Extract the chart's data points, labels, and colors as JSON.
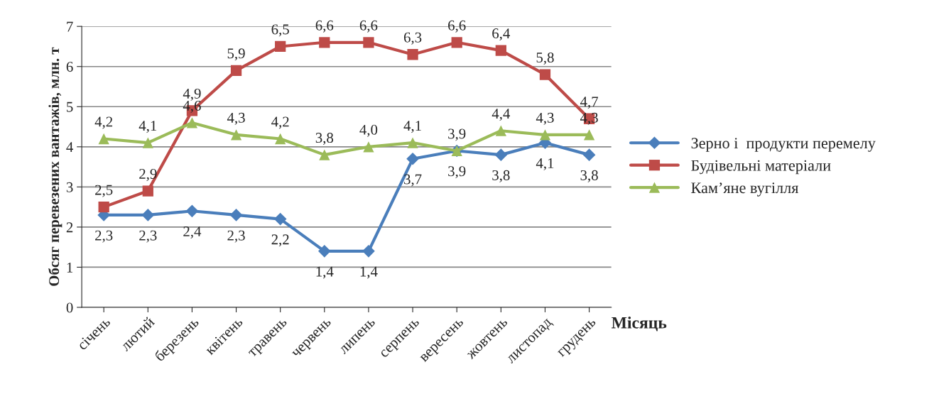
{
  "chart_data": {
    "type": "line",
    "xlabel": "Місяць",
    "ylabel": "Обсяг перевезених вантажів, млн. т",
    "categories": [
      "січень",
      "лютий",
      "березень",
      "квітень",
      "травень",
      "червень",
      "липень",
      "серпень",
      "вересень",
      "жовтень",
      "листопад",
      "грудень"
    ],
    "series": [
      {
        "name": "Зерно і  продукти перемелу",
        "color": "#4a7ebb",
        "marker": "diamond",
        "values": [
          2.3,
          2.3,
          2.4,
          2.3,
          2.2,
          1.4,
          1.4,
          3.7,
          3.9,
          3.8,
          4.1,
          3.8
        ],
        "value_labels": [
          "2,3",
          "2,3",
          "2,4",
          "2,3",
          "2,2",
          "1,4",
          "1,4",
          "3,7",
          "3,9",
          "3,8",
          "4,1",
          "3,8"
        ]
      },
      {
        "name": "Будівельні матеріали",
        "color": "#be4b48",
        "marker": "square",
        "values": [
          2.5,
          2.9,
          4.9,
          5.9,
          6.5,
          6.6,
          6.6,
          6.3,
          6.6,
          6.4,
          5.8,
          4.7
        ],
        "value_labels": [
          "2,5",
          "2,9",
          "4,9",
          "5,9",
          "6,5",
          "6,6",
          "6,6",
          "6,3",
          "6,6",
          "6,4",
          "5,8",
          "4,7"
        ]
      },
      {
        "name": "Кам’яне вугілля",
        "color": "#9bbb59",
        "marker": "triangle",
        "values": [
          4.2,
          4.1,
          4.6,
          4.3,
          4.2,
          3.8,
          4.0,
          4.1,
          3.9,
          4.4,
          4.3,
          4.3
        ],
        "value_labels": [
          "4,2",
          "4,1",
          "4,6",
          "4,3",
          "4,2",
          "3,8",
          "4,0",
          "4,1",
          "3,9",
          "4,4",
          "4,3",
          "4,3"
        ]
      }
    ],
    "ylim": [
      0,
      7
    ],
    "yticks": [
      0,
      1,
      2,
      3,
      4,
      5,
      6,
      7
    ],
    "grid": "y",
    "legend": "right",
    "line_style": "solid"
  }
}
